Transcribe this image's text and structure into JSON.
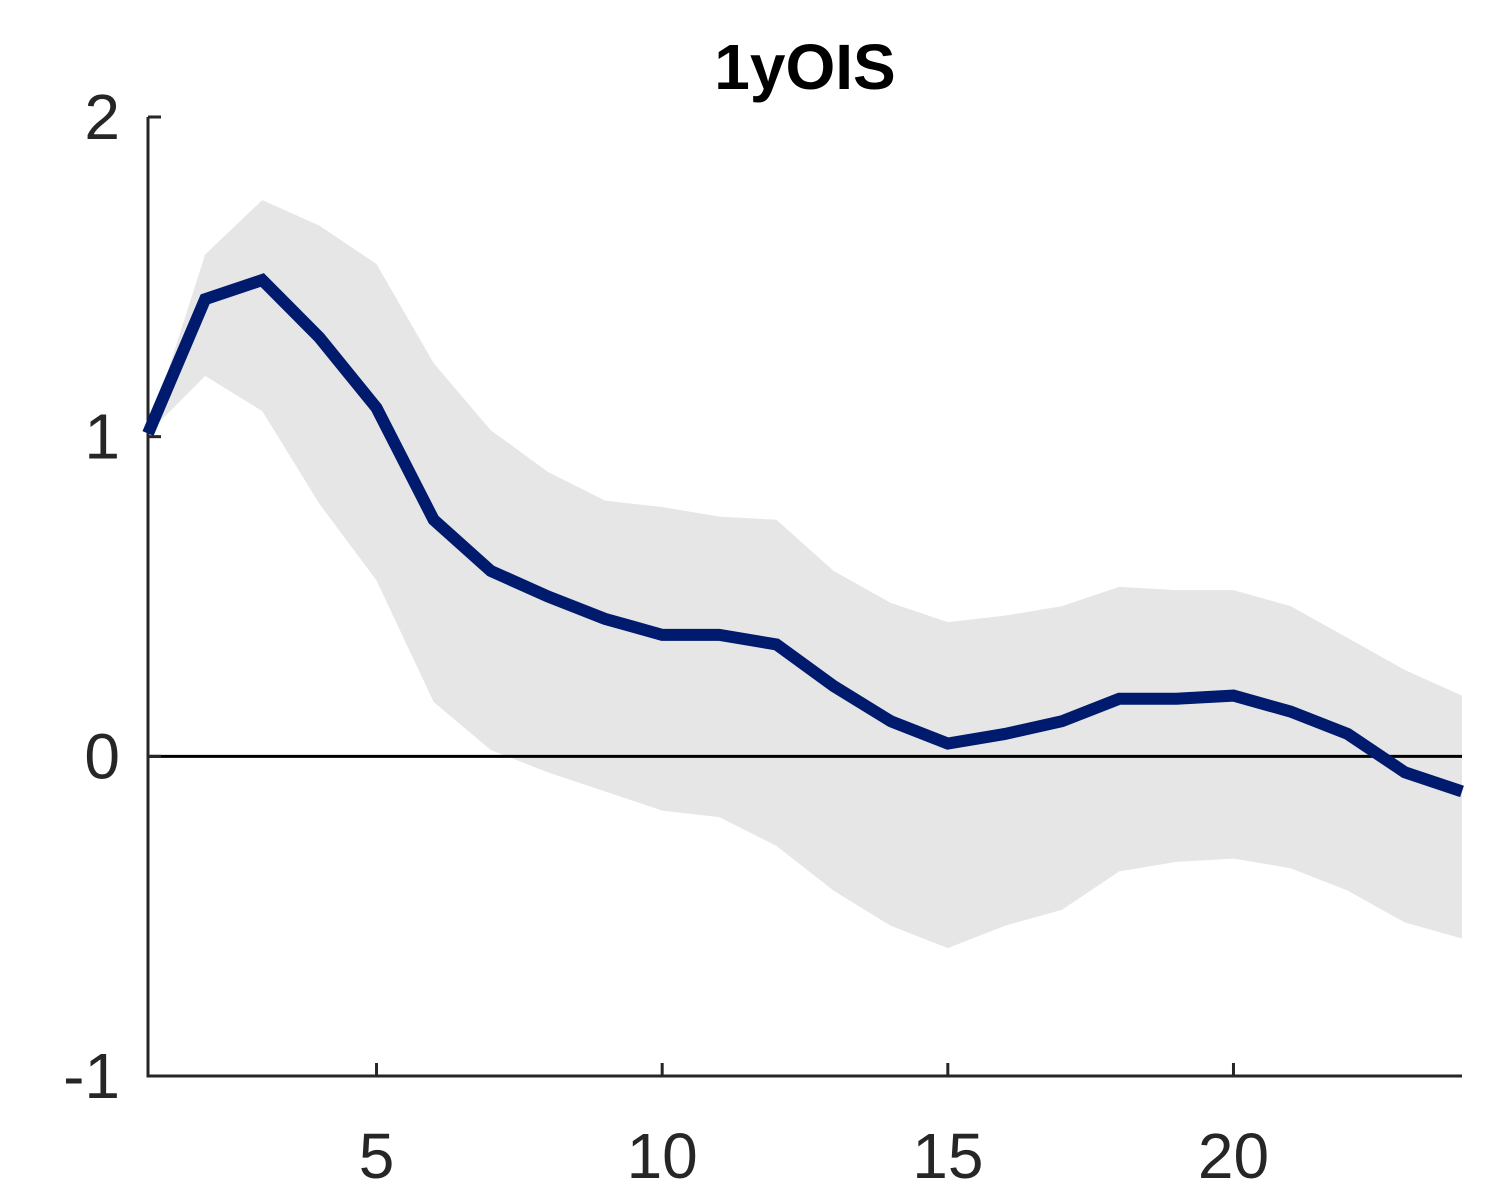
{
  "colors": {
    "line": "#001a6e",
    "band": "#e6e6e6",
    "axis": "#262626",
    "zero_line": "#000000",
    "background": "#ffffff"
  },
  "chart_data": {
    "type": "line",
    "title": "1yOIS",
    "xlabel": "",
    "ylabel": "",
    "xlim": [
      1,
      24
    ],
    "ylim": [
      -1,
      2
    ],
    "x_ticks": [
      5,
      10,
      15,
      20
    ],
    "x_tick_labels": [
      "5",
      "10",
      "15",
      "20"
    ],
    "y_ticks": [
      -1,
      0,
      1,
      2
    ],
    "y_tick_labels": [
      "-1",
      "0",
      "1",
      "2"
    ],
    "grid": false,
    "legend": "none",
    "reference_line": 0,
    "x": [
      1,
      2,
      3,
      4,
      5,
      6,
      7,
      8,
      9,
      10,
      11,
      12,
      13,
      14,
      15,
      16,
      17,
      18,
      19,
      20,
      21,
      22,
      23,
      24
    ],
    "series": [
      {
        "values": [
          1.01,
          1.43,
          1.49,
          1.31,
          1.09,
          0.74,
          0.58,
          0.5,
          0.43,
          0.38,
          0.38,
          0.35,
          0.22,
          0.11,
          0.04,
          0.07,
          0.11,
          0.18,
          0.18,
          0.19,
          0.14,
          0.07,
          -0.05,
          -0.11
        ]
      }
    ],
    "band": {
      "upper": [
        1.01,
        1.57,
        1.74,
        1.66,
        1.54,
        1.23,
        1.02,
        0.89,
        0.8,
        0.78,
        0.75,
        0.74,
        0.58,
        0.48,
        0.42,
        0.44,
        0.47,
        0.53,
        0.52,
        0.52,
        0.47,
        0.37,
        0.27,
        0.19
      ],
      "lower": [
        1.01,
        1.19,
        1.08,
        0.79,
        0.55,
        0.17,
        0.02,
        -0.05,
        -0.11,
        -0.17,
        -0.19,
        -0.28,
        -0.42,
        -0.53,
        -0.6,
        -0.53,
        -0.48,
        -0.36,
        -0.33,
        -0.32,
        -0.35,
        -0.42,
        -0.52,
        -0.57
      ]
    }
  }
}
